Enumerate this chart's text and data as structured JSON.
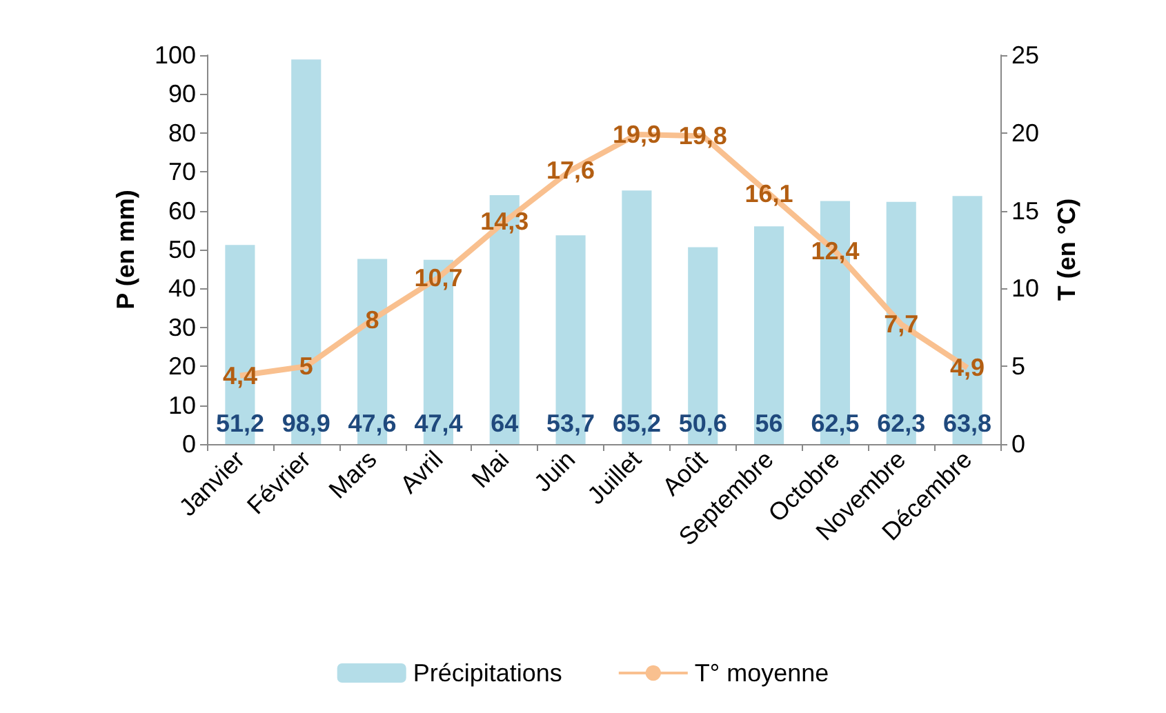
{
  "chart_data": {
    "type": "bar",
    "ylabel": "P (en mm)",
    "y2label": "T (en °C)",
    "categories": [
      "Janvier",
      "Février",
      "Mars",
      "Avril",
      "Mai",
      "Juin",
      "Juillet",
      "Août",
      "Septembre",
      "Octobre",
      "Novembre",
      "Décembre"
    ],
    "series": [
      {
        "name": "Précipitations",
        "color": "#b4dde8",
        "values": [
          51.2,
          98.9,
          47.6,
          47.4,
          64,
          53.7,
          65.2,
          50.6,
          56,
          62.5,
          62.3,
          63.8
        ],
        "value_labels": [
          "51,2",
          "98,9",
          "47,6",
          "47,4",
          "64",
          "53,7",
          "65,2",
          "50,6",
          "56",
          "62,5",
          "62,3",
          "63,8"
        ]
      },
      {
        "name": "T° moyenne",
        "type": "line",
        "axis": "y2",
        "color": "#f9c08f",
        "marker": "none",
        "values": [
          4.4,
          5,
          8,
          10.7,
          14.3,
          17.6,
          19.9,
          19.8,
          16.1,
          12.4,
          7.7,
          4.9
        ],
        "value_labels": [
          "4,4",
          "5",
          "8",
          "10,7",
          "14,3",
          "17,6",
          "19,9",
          "19,8",
          "16,1",
          "12,4",
          "7,7",
          "4,9"
        ]
      }
    ],
    "ylim": [
      0,
      100
    ],
    "yticks": [
      0,
      10,
      20,
      30,
      40,
      50,
      60,
      70,
      80,
      90,
      100
    ],
    "y2lim": [
      0,
      25
    ],
    "y2ticks": [
      0,
      5,
      10,
      15,
      20,
      25
    ],
    "grid": false,
    "legend": "bottom"
  }
}
